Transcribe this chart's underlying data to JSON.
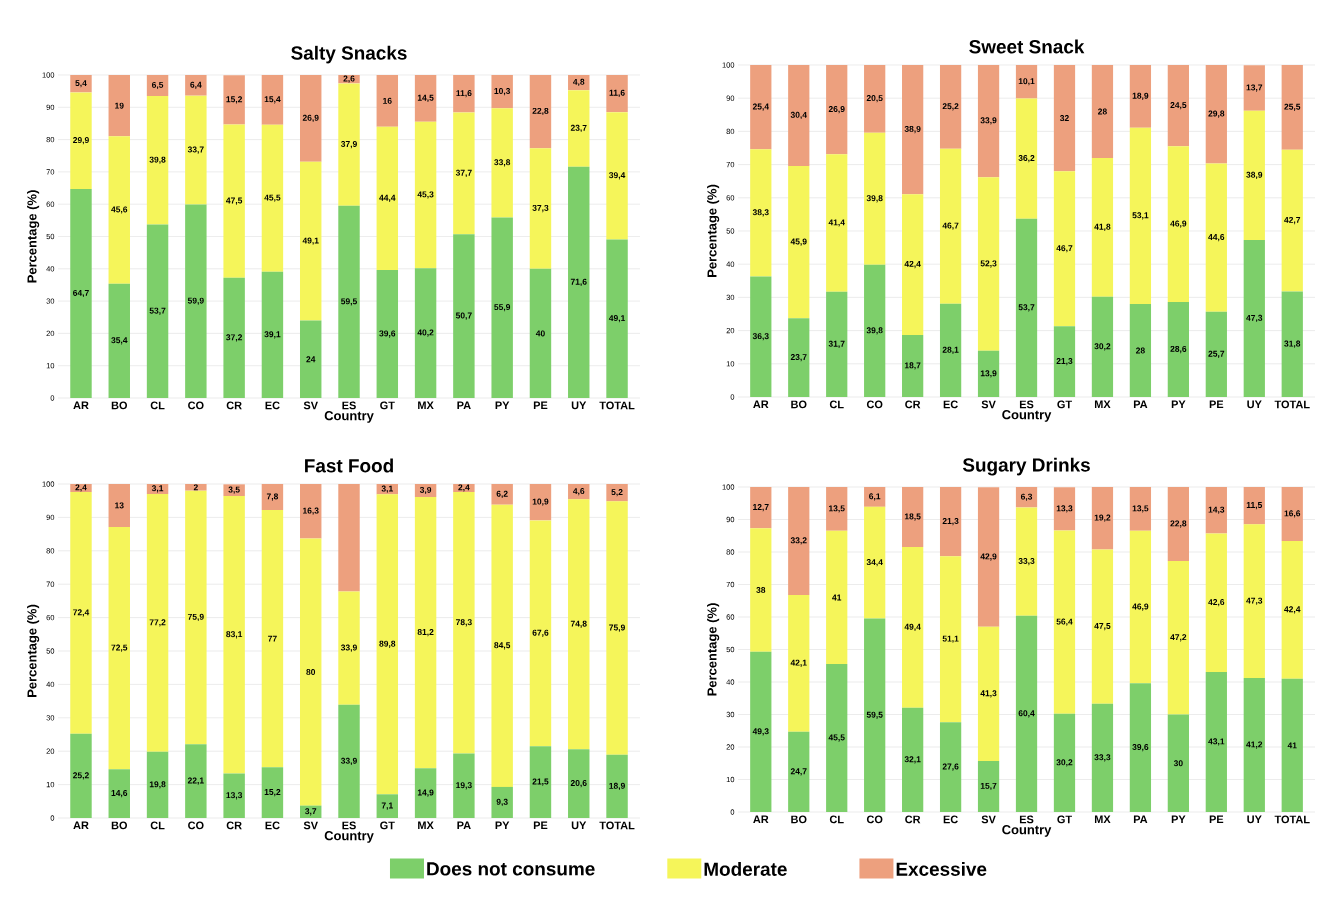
{
  "chart_data": [
    {
      "type": "bar",
      "stacked": true,
      "title": "Salty Snacks",
      "xlabel": "Country",
      "ylabel": "Percentage (%)",
      "grid": "y",
      "categories": [
        "AR",
        "BO",
        "CL",
        "CO",
        "CR",
        "EC",
        "SV",
        "ES",
        "GT",
        "MX",
        "PA",
        "PY",
        "PE",
        "UY",
        "TOTAL"
      ],
      "ylim": [
        0,
        100
      ],
      "yticks": [
        0,
        10,
        20,
        30,
        40,
        50,
        60,
        70,
        80,
        90,
        100
      ],
      "series": [
        {
          "color": "#7dcf6a",
          "values": [
            64.7,
            35.4,
            53.7,
            59.9,
            37.2,
            39.1,
            24,
            59.5,
            39.6,
            40.2,
            50.7,
            55.9,
            40,
            71.6,
            49.1
          ],
          "value_labels": [
            "64,7",
            "35,4",
            "53,7",
            "59,9",
            "37,2",
            "39,1",
            "24",
            "59,5",
            "39,6",
            "40,2",
            "50,7",
            "55,9",
            "40",
            "71,6",
            "49,1"
          ]
        },
        {
          "color": "#f5f55a",
          "values": [
            29.9,
            45.6,
            39.8,
            33.7,
            47.5,
            45.5,
            49.1,
            37.9,
            44.4,
            45.3,
            37.7,
            33.8,
            37.3,
            23.7,
            39.4
          ],
          "value_labels": [
            "29,9",
            "45,6",
            "39,8",
            "33,7",
            "47,5",
            "45,5",
            "49,1",
            "37,9",
            "44,4",
            "45,3",
            "37,7",
            "33,8",
            "37,3",
            "23,7",
            "39,4"
          ]
        },
        {
          "color": "#eda07e",
          "values": [
            5.4,
            19,
            6.5,
            6.4,
            15.2,
            15.4,
            26.9,
            2.6,
            16,
            14.5,
            11.6,
            10.3,
            22.8,
            4.8,
            11.6
          ],
          "value_labels": [
            "5,4",
            "19",
            "6,5",
            "6,4",
            "15,2",
            "15,4",
            "26,9",
            "2,6",
            "16",
            "14,5",
            "11,6",
            "10,3",
            "22,8",
            "4,8",
            "11,6"
          ]
        }
      ]
    },
    {
      "type": "bar",
      "stacked": true,
      "title": "Sweet Snack",
      "xlabel": "Country",
      "ylabel": "Percentage (%)",
      "grid": "y",
      "categories": [
        "AR",
        "BO",
        "CL",
        "CO",
        "CR",
        "EC",
        "SV",
        "ES",
        "GT",
        "MX",
        "PA",
        "PY",
        "PE",
        "UY",
        "TOTAL"
      ],
      "ylim": [
        0,
        100
      ],
      "yticks": [
        0,
        10,
        20,
        30,
        40,
        50,
        60,
        70,
        80,
        90,
        100
      ],
      "series": [
        {
          "color": "#7dcf6a",
          "values": [
            36.3,
            23.7,
            31.7,
            39.8,
            18.7,
            28.1,
            13.9,
            53.7,
            21.3,
            30.2,
            28,
            28.6,
            25.7,
            47.3,
            31.8
          ],
          "value_labels": [
            "36,3",
            "23,7",
            "31,7",
            "39,8",
            "18,7",
            "28,1",
            "13,9",
            "53,7",
            "21,3",
            "30,2",
            "28",
            "28,6",
            "25,7",
            "47,3",
            "31,8"
          ]
        },
        {
          "color": "#f5f55a",
          "values": [
            38.3,
            45.9,
            41.4,
            39.8,
            42.4,
            46.7,
            52.3,
            36.2,
            46.7,
            41.8,
            53.1,
            46.9,
            44.6,
            38.9,
            42.7
          ],
          "value_labels": [
            "38,3",
            "45,9",
            "41,4",
            "39,8",
            "42,4",
            "46,7",
            "52,3",
            "36,2",
            "46,7",
            "41,8",
            "53,1",
            "46,9",
            "44,6",
            "38,9",
            "42,7"
          ]
        },
        {
          "color": "#eda07e",
          "values": [
            25.4,
            30.4,
            26.9,
            20.5,
            38.9,
            25.2,
            33.9,
            10.1,
            32,
            28,
            18.9,
            24.5,
            29.8,
            13.7,
            25.5
          ],
          "value_labels": [
            "25,4",
            "30,4",
            "26,9",
            "20,5",
            "38,9",
            "25,2",
            "33,9",
            "10,1",
            "32",
            "28",
            "18,9",
            "24,5",
            "29,8",
            "13,7",
            "25,5"
          ]
        }
      ]
    },
    {
      "type": "bar",
      "stacked": true,
      "title": "Fast Food",
      "xlabel": "Country",
      "ylabel": "Percentage (%)",
      "grid": "y",
      "legend": "bottom",
      "categories": [
        "AR",
        "BO",
        "CL",
        "CO",
        "CR",
        "EC",
        "SV",
        "ES",
        "GT",
        "MX",
        "PA",
        "PY",
        "PE",
        "UY",
        "TOTAL"
      ],
      "ylim": [
        0,
        100
      ],
      "yticks": [
        0,
        10,
        20,
        30,
        40,
        50,
        60,
        70,
        80,
        90,
        100
      ],
      "series": [
        {
          "name": "Does not consume",
          "color": "#7dcf6a",
          "values": [
            25.2,
            14.6,
            19.8,
            22.1,
            13.3,
            15.2,
            3.7,
            33.9,
            7.1,
            14.9,
            19.3,
            9.3,
            21.5,
            20.6,
            18.9
          ],
          "value_labels": [
            "25,2",
            "14,6",
            "19,8",
            "22,1",
            "13,3",
            "15,2",
            "3,7",
            "33,9",
            "7,1",
            "14,9",
            "19,3",
            "9,3",
            "21,5",
            "20,6",
            "18,9"
          ]
        },
        {
          "name": "Moderate",
          "color": "#f5f55a",
          "values": [
            72.4,
            72.5,
            77.2,
            75.9,
            83.1,
            77,
            80,
            33.9,
            89.8,
            81.2,
            78.3,
            84.5,
            67.6,
            74.8,
            75.9
          ],
          "value_labels": [
            "72,4",
            "72,5",
            "77,2",
            "75,9",
            "83,1",
            "77",
            "80",
            "33,9",
            "89,8",
            "81,2",
            "78,3",
            "84,5",
            "67,6",
            "74,8",
            "75,9"
          ]
        },
        {
          "name": "Excessive",
          "color": "#eda07e",
          "values": [
            2.4,
            13,
            3.1,
            2,
            3.5,
            7.8,
            16.3,
            32.2,
            3.1,
            3.9,
            2.4,
            6.2,
            10.9,
            4.6,
            5.2
          ],
          "value_labels": [
            "2,4",
            "13",
            "3,1",
            "2",
            "3,5",
            "7,8",
            "16,3",
            null,
            "3,1",
            "3,9",
            "2,4",
            "6,2",
            "10,9",
            "4,6",
            "5,2"
          ]
        }
      ]
    },
    {
      "type": "bar",
      "stacked": true,
      "title": "Sugary Drinks",
      "xlabel": "Country",
      "ylabel": "Percentage (%)",
      "grid": "y",
      "categories": [
        "AR",
        "BO",
        "CL",
        "CO",
        "CR",
        "EC",
        "SV",
        "ES",
        "GT",
        "MX",
        "PA",
        "PY",
        "PE",
        "UY",
        "TOTAL"
      ],
      "ylim": [
        0,
        100
      ],
      "yticks": [
        0,
        10,
        20,
        30,
        40,
        50,
        60,
        70,
        80,
        90,
        100
      ],
      "series": [
        {
          "color": "#7dcf6a",
          "values": [
            49.3,
            24.7,
            45.5,
            59.5,
            32.1,
            27.6,
            15.7,
            60.4,
            30.2,
            33.3,
            39.6,
            30,
            43.1,
            41.2,
            41
          ],
          "value_labels": [
            "49,3",
            "24,7",
            "45,5",
            "59,5",
            "32,1",
            "27,6",
            "15,7",
            "60,4",
            "30,2",
            "33,3",
            "39,6",
            "30",
            "43,1",
            "41,2",
            "41"
          ]
        },
        {
          "color": "#f5f55a",
          "values": [
            38,
            42.1,
            41,
            34.4,
            49.4,
            51.1,
            41.3,
            33.3,
            56.4,
            47.5,
            46.9,
            47.2,
            42.6,
            47.3,
            42.4
          ],
          "value_labels": [
            "38",
            "42,1",
            "41",
            "34,4",
            "49,4",
            "51,1",
            "41,3",
            "33,3",
            "56,4",
            "47,5",
            "46,9",
            "47,2",
            "42,6",
            "47,3",
            "42,4"
          ]
        },
        {
          "color": "#eda07e",
          "values": [
            12.7,
            33.2,
            13.5,
            6.1,
            18.5,
            21.3,
            42.9,
            6.3,
            13.3,
            19.2,
            13.5,
            22.8,
            14.3,
            11.5,
            16.6
          ],
          "value_labels": [
            "12,7",
            "33,2",
            "13,5",
            "6,1",
            "18,5",
            "21,3",
            "42,9",
            "6,3",
            "13,3",
            "19,2",
            "13,5",
            "22,8",
            "14,3",
            "11,5",
            "16,6"
          ]
        }
      ]
    }
  ]
}
